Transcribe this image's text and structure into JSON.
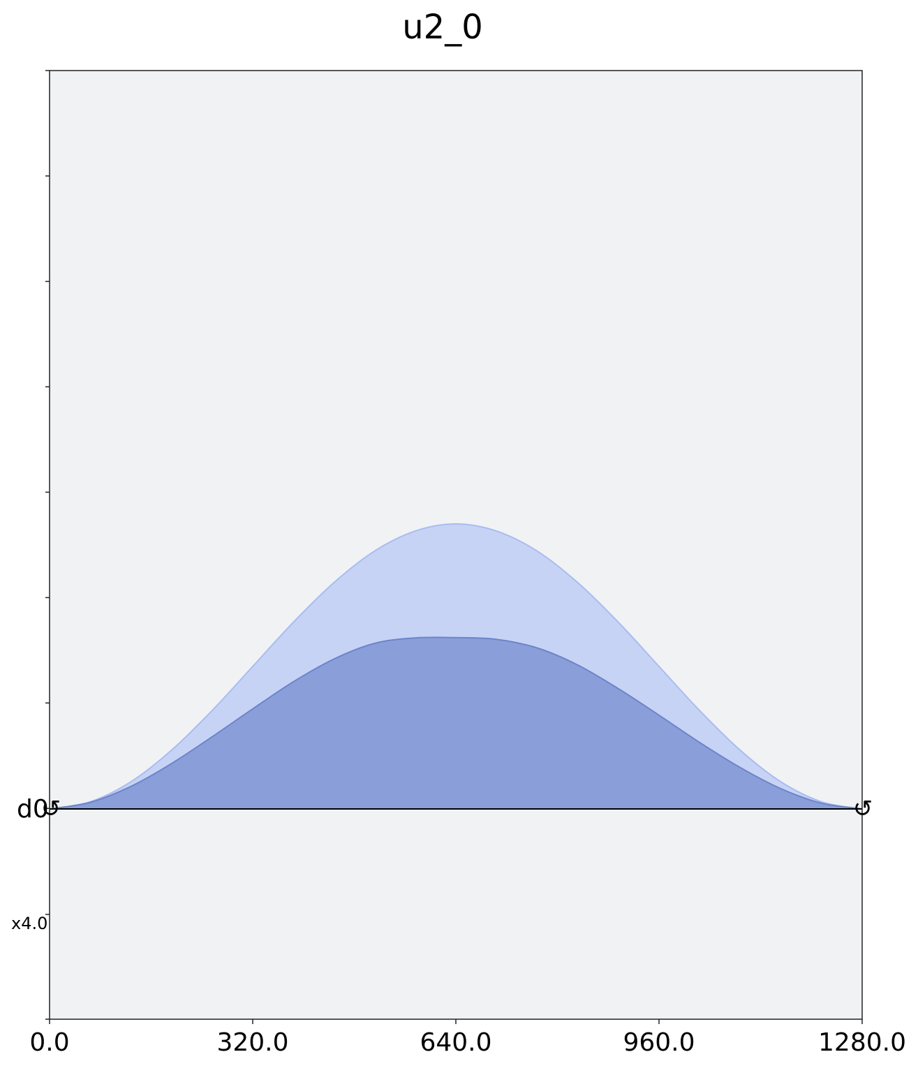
{
  "chart_data": {
    "type": "area",
    "title": "u2_0",
    "xlabel": "",
    "ylabel": "",
    "xlim": [
      0,
      1280
    ],
    "x_ticks": [
      "0.0",
      "320.0",
      "640.0",
      "960.0",
      "1280.0"
    ],
    "y_ticks": [
      "",
      "",
      "",
      "",
      "",
      "",
      "",
      ""
    ],
    "grid": false,
    "legend": "none",
    "beam_label": "d0",
    "scale_label": "x4.0",
    "support_symbol": "↺",
    "series": [
      {
        "color": "#c7d3f5",
        "x": [
          0,
          64,
          128,
          192,
          256,
          320,
          384,
          448,
          512,
          576,
          640,
          704,
          768,
          832,
          896,
          960,
          1024,
          1088,
          1152,
          1216,
          1280
        ],
        "values": [
          0,
          2.5,
          9.5,
          20.6,
          34.5,
          50.0,
          65.5,
          79.4,
          90.5,
          97.5,
          100.0,
          97.5,
          90.5,
          79.4,
          65.5,
          50.0,
          34.5,
          20.6,
          9.5,
          2.5,
          0
        ]
      },
      {
        "color": "#8a9fd9",
        "x": [
          0,
          64,
          128,
          192,
          256,
          320,
          384,
          448,
          512,
          576,
          640,
          704,
          768,
          832,
          896,
          960,
          1024,
          1088,
          1152,
          1216,
          1280
        ],
        "values": [
          0,
          2.3,
          7.9,
          15.9,
          25.3,
          35.1,
          44.6,
          52.6,
          58.1,
          60.0,
          60.1,
          59.5,
          56.5,
          50.5,
          42.2,
          32.9,
          23.3,
          14.5,
          7.1,
          2.0,
          0
        ]
      }
    ]
  }
}
